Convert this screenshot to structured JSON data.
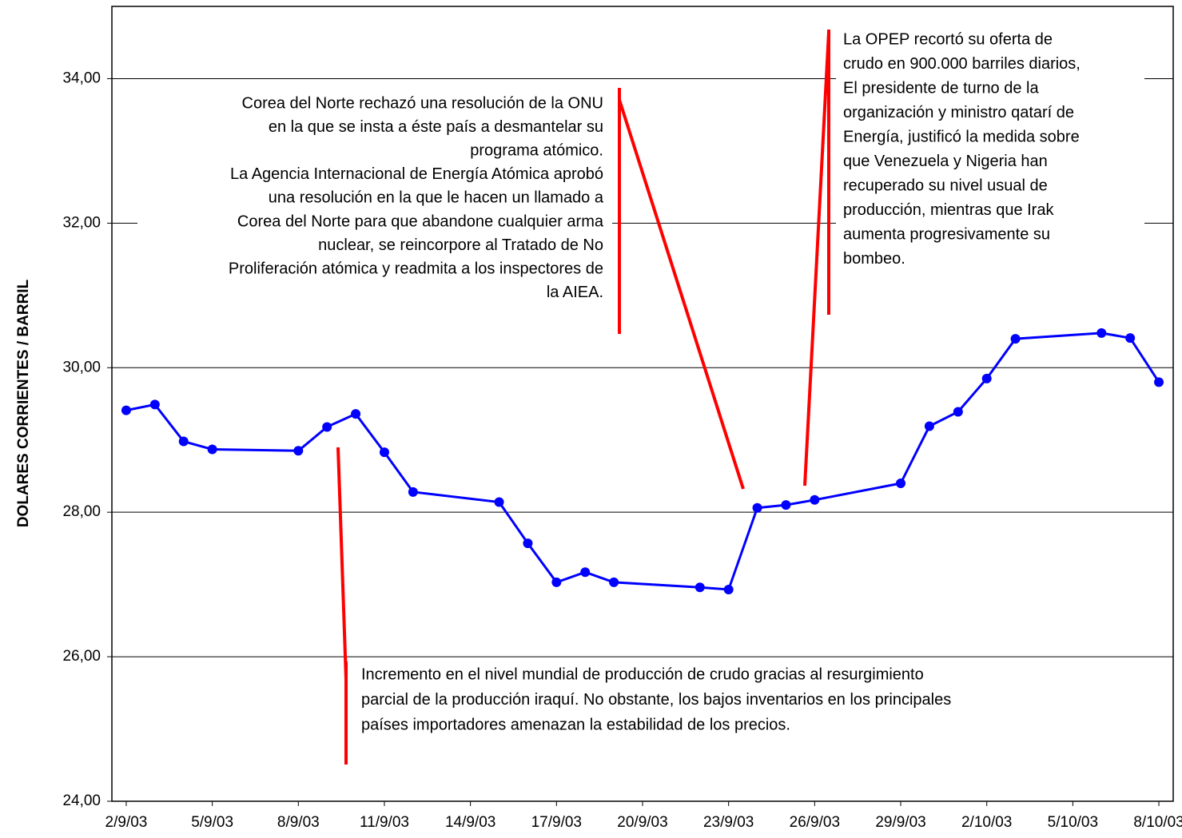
{
  "chart_data": {
    "type": "line",
    "y_label": "DOLARES CORRIENTES / BARRIL",
    "x": [
      "2/9/03",
      "3/9/03",
      "4/9/03",
      "5/9/03",
      "8/9/03",
      "9/9/03",
      "10/9/03",
      "11/9/03",
      "12/9/03",
      "15/9/03",
      "16/9/03",
      "17/9/03",
      "18/9/03",
      "19/9/03",
      "22/9/03",
      "23/9/03",
      "24/9/03",
      "25/9/03",
      "26/9/03",
      "29/9/03",
      "30/9/03",
      "1/10/03",
      "2/10/03",
      "3/10/03",
      "6/10/03",
      "7/10/03",
      "8/10/03"
    ],
    "series": [
      {
        "color": "#0000ff",
        "values": [
          29.41,
          29.49,
          28.98,
          28.87,
          28.85,
          29.18,
          29.36,
          28.83,
          28.28,
          28.14,
          27.57,
          27.03,
          27.17,
          27.03,
          26.96,
          26.93,
          28.06,
          28.1,
          28.17,
          28.4,
          29.19,
          29.39,
          29.85,
          30.4,
          30.48,
          30.41,
          29.8
        ]
      }
    ],
    "ylim": [
      24,
      35
    ],
    "yticks": [
      {
        "value": 24,
        "label": "24,00"
      },
      {
        "value": 26,
        "label": "26,00"
      },
      {
        "value": 28,
        "label": "28,00"
      },
      {
        "value": 30,
        "label": "30,00"
      },
      {
        "value": 32,
        "label": "32,00"
      },
      {
        "value": 34,
        "label": "34,00"
      }
    ],
    "xticks": [
      "2/9/03",
      "5/9/03",
      "8/9/03",
      "11/9/03",
      "14/9/03",
      "17/9/03",
      "20/9/03",
      "23/9/03",
      "26/9/03",
      "29/9/03",
      "2/10/03",
      "5/10/03",
      "8/10/03"
    ],
    "grid": true,
    "annotations": [
      {
        "lines": [
          "Corea del Norte rechazó una resolución de la ONU",
          "en la que se insta a éste país a desmantelar su",
          "programa atómico.",
          "La Agencia Internacional de Energía Atómica aprobó",
          "una resolución en la que le hacen un llamado a",
          "Corea del Norte para que abandone cualquier arma",
          "nuclear, se reincorpore al Tratado de No",
          "Proliferación atómica y readmita a los inspectores de",
          "la AIEA."
        ]
      },
      {
        "lines": [
          "La OPEP recortó su oferta de",
          "crudo en 900.000 barriles diarios,",
          "El presidente de turno de la",
          "organización y ministro qatarí de",
          "Energía, justificó la medida sobre",
          "que Venezuela y Nigeria han",
          "recuperado su nivel usual de",
          "producción, mientras que Irak",
          "aumenta progresivamente su",
          "bombeo."
        ]
      },
      {
        "lines": [
          "Incremento en el nivel mundial de producción de crudo gracias al resurgimiento",
          "parcial de la producción iraquí. No obstante, los bajos inventarios en los principales",
          "países importadores amenazan la estabilidad de los precios."
        ]
      }
    ]
  }
}
